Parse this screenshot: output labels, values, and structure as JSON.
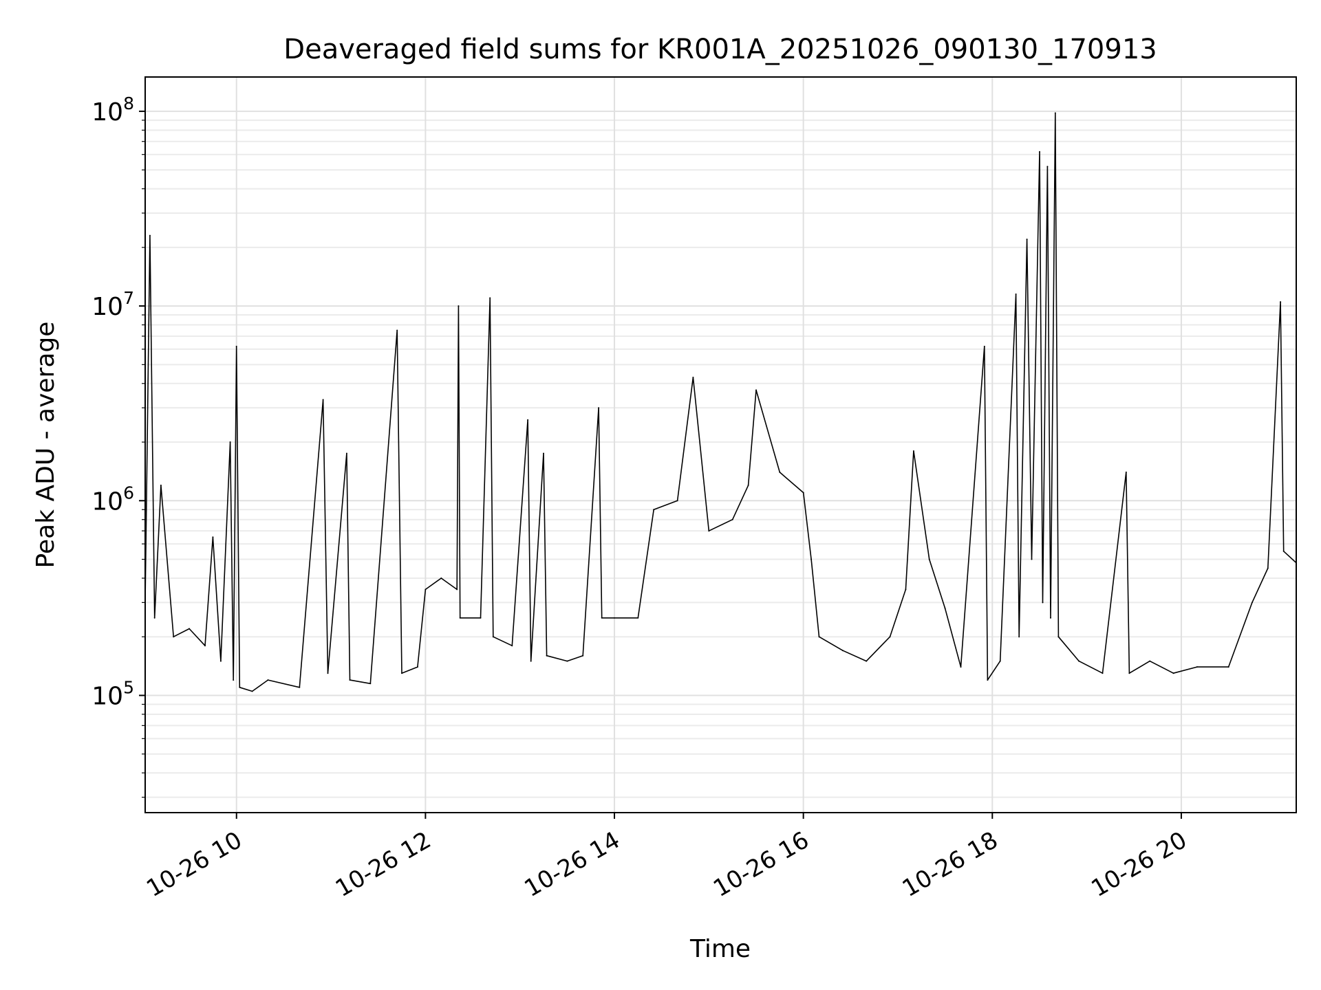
{
  "chart_data": {
    "type": "line",
    "title": "Deaveraged field sums for KR001A_20251026_090130_170913",
    "xlabel": "Time",
    "ylabel": "Peak ADU - average",
    "y_scale": "log",
    "x_range": [
      "2025-10-26T09:02",
      "2025-10-26T21:13"
    ],
    "ylim": [
      25000,
      150000000
    ],
    "grid": {
      "major": true,
      "minor_y": true
    },
    "line_color": "#000000",
    "x_ticks": [
      {
        "time": "2025-10-26T10:00",
        "label": "10-26 10"
      },
      {
        "time": "2025-10-26T12:00",
        "label": "10-26 12"
      },
      {
        "time": "2025-10-26T14:00",
        "label": "10-26 14"
      },
      {
        "time": "2025-10-26T16:00",
        "label": "10-26 16"
      },
      {
        "time": "2025-10-26T18:00",
        "label": "10-26 18"
      },
      {
        "time": "2025-10-26T20:00",
        "label": "10-26 20"
      }
    ],
    "y_ticks": [
      {
        "value": 100000,
        "base": "10",
        "exp": "5"
      },
      {
        "value": 1000000,
        "base": "10",
        "exp": "6"
      },
      {
        "value": 10000000,
        "base": "10",
        "exp": "7"
      },
      {
        "value": 100000000,
        "base": "10",
        "exp": "8"
      }
    ],
    "series": [
      {
        "points": [
          [
            "2025-10-26T09:02",
            300000
          ],
          [
            "2025-10-26T09:05",
            23000000
          ],
          [
            "2025-10-26T09:08",
            250000
          ],
          [
            "2025-10-26T09:12",
            1200000
          ],
          [
            "2025-10-26T09:20",
            200000
          ],
          [
            "2025-10-26T09:30",
            220000
          ],
          [
            "2025-10-26T09:40",
            180000
          ],
          [
            "2025-10-26T09:45",
            650000
          ],
          [
            "2025-10-26T09:50",
            150000
          ],
          [
            "2025-10-26T09:56",
            2000000
          ],
          [
            "2025-10-26T09:58",
            120000
          ],
          [
            "2025-10-26T10:00",
            6200000
          ],
          [
            "2025-10-26T10:02",
            110000
          ],
          [
            "2025-10-26T10:10",
            105000
          ],
          [
            "2025-10-26T10:20",
            120000
          ],
          [
            "2025-10-26T10:40",
            110000
          ],
          [
            "2025-10-26T10:55",
            3300000
          ],
          [
            "2025-10-26T10:58",
            130000
          ],
          [
            "2025-10-26T11:10",
            1750000
          ],
          [
            "2025-10-26T11:12",
            120000
          ],
          [
            "2025-10-26T11:25",
            115000
          ],
          [
            "2025-10-26T11:42",
            7500000
          ],
          [
            "2025-10-26T11:45",
            130000
          ],
          [
            "2025-10-26T11:55",
            140000
          ],
          [
            "2025-10-26T12:00",
            350000
          ],
          [
            "2025-10-26T12:10",
            400000
          ],
          [
            "2025-10-26T12:20",
            350000
          ],
          [
            "2025-10-26T12:21",
            10000000
          ],
          [
            "2025-10-26T12:22",
            250000
          ],
          [
            "2025-10-26T12:35",
            250000
          ],
          [
            "2025-10-26T12:41",
            11000000
          ],
          [
            "2025-10-26T12:43",
            200000
          ],
          [
            "2025-10-26T12:55",
            180000
          ],
          [
            "2025-10-26T13:05",
            2600000
          ],
          [
            "2025-10-26T13:07",
            150000
          ],
          [
            "2025-10-26T13:15",
            1750000
          ],
          [
            "2025-10-26T13:17",
            160000
          ],
          [
            "2025-10-26T13:30",
            150000
          ],
          [
            "2025-10-26T13:40",
            160000
          ],
          [
            "2025-10-26T13:50",
            3000000
          ],
          [
            "2025-10-26T13:52",
            250000
          ],
          [
            "2025-10-26T14:00",
            250000
          ],
          [
            "2025-10-26T14:15",
            250000
          ],
          [
            "2025-10-26T14:25",
            900000
          ],
          [
            "2025-10-26T14:40",
            1000000
          ],
          [
            "2025-10-26T14:50",
            4300000
          ],
          [
            "2025-10-26T15:00",
            700000
          ],
          [
            "2025-10-26T15:15",
            800000
          ],
          [
            "2025-10-26T15:25",
            1200000
          ],
          [
            "2025-10-26T15:30",
            3700000
          ],
          [
            "2025-10-26T15:45",
            1400000
          ],
          [
            "2025-10-26T16:00",
            1100000
          ],
          [
            "2025-10-26T16:05",
            500000
          ],
          [
            "2025-10-26T16:10",
            200000
          ],
          [
            "2025-10-26T16:25",
            170000
          ],
          [
            "2025-10-26T16:40",
            150000
          ],
          [
            "2025-10-26T16:55",
            200000
          ],
          [
            "2025-10-26T17:05",
            350000
          ],
          [
            "2025-10-26T17:10",
            1800000
          ],
          [
            "2025-10-26T17:20",
            500000
          ],
          [
            "2025-10-26T17:30",
            280000
          ],
          [
            "2025-10-26T17:40",
            140000
          ],
          [
            "2025-10-26T17:55",
            6200000
          ],
          [
            "2025-10-26T17:57",
            120000
          ],
          [
            "2025-10-26T18:05",
            150000
          ],
          [
            "2025-10-26T18:15",
            11500000
          ],
          [
            "2025-10-26T18:17",
            200000
          ],
          [
            "2025-10-26T18:22",
            22000000
          ],
          [
            "2025-10-26T18:25",
            500000
          ],
          [
            "2025-10-26T18:30",
            62000000
          ],
          [
            "2025-10-26T18:32",
            300000
          ],
          [
            "2025-10-26T18:35",
            52000000
          ],
          [
            "2025-10-26T18:37",
            250000
          ],
          [
            "2025-10-26T18:40",
            98000000
          ],
          [
            "2025-10-26T18:42",
            200000
          ],
          [
            "2025-10-26T18:55",
            150000
          ],
          [
            "2025-10-26T19:10",
            130000
          ],
          [
            "2025-10-26T19:25",
            1400000
          ],
          [
            "2025-10-26T19:27",
            130000
          ],
          [
            "2025-10-26T19:40",
            150000
          ],
          [
            "2025-10-26T19:55",
            130000
          ],
          [
            "2025-10-26T20:10",
            140000
          ],
          [
            "2025-10-26T20:30",
            140000
          ],
          [
            "2025-10-26T20:45",
            300000
          ],
          [
            "2025-10-26T20:55",
            450000
          ],
          [
            "2025-10-26T21:03",
            10500000
          ],
          [
            "2025-10-26T21:05",
            550000
          ],
          [
            "2025-10-26T21:13",
            480000
          ]
        ]
      }
    ]
  }
}
